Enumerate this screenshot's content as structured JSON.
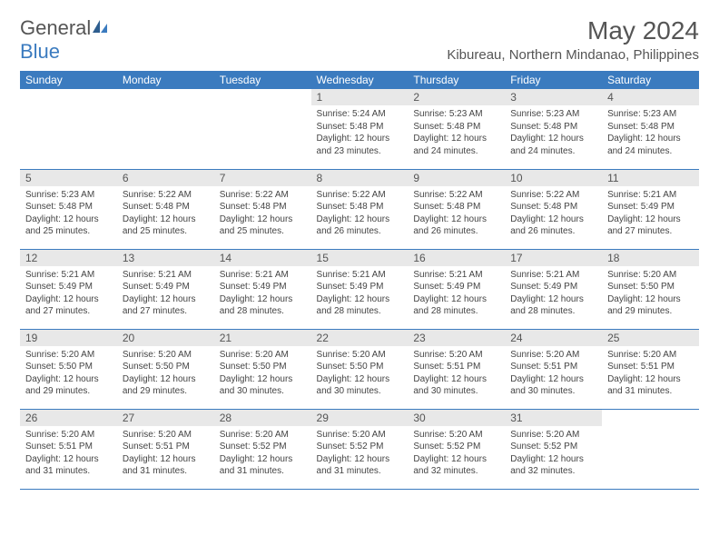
{
  "brand": {
    "part1": "General",
    "part2": "Blue"
  },
  "title": "May 2024",
  "location": "Kibureau, Northern Mindanao, Philippines",
  "weekdays": [
    "Sunday",
    "Monday",
    "Tuesday",
    "Wednesday",
    "Thursday",
    "Friday",
    "Saturday"
  ],
  "colors": {
    "header_bg": "#3b7bbf",
    "header_text": "#ffffff",
    "daynum_bg": "#e8e8e8",
    "border": "#3b7bbf",
    "text": "#444444"
  },
  "fonts": {
    "title_size": 28,
    "location_size": 15,
    "weekday_size": 12,
    "daynum_size": 12,
    "body_size": 10
  },
  "grid": [
    [
      null,
      null,
      null,
      {
        "n": "1",
        "sr": "Sunrise: 5:24 AM",
        "ss": "Sunset: 5:48 PM",
        "dl1": "Daylight: 12 hours",
        "dl2": "and 23 minutes."
      },
      {
        "n": "2",
        "sr": "Sunrise: 5:23 AM",
        "ss": "Sunset: 5:48 PM",
        "dl1": "Daylight: 12 hours",
        "dl2": "and 24 minutes."
      },
      {
        "n": "3",
        "sr": "Sunrise: 5:23 AM",
        "ss": "Sunset: 5:48 PM",
        "dl1": "Daylight: 12 hours",
        "dl2": "and 24 minutes."
      },
      {
        "n": "4",
        "sr": "Sunrise: 5:23 AM",
        "ss": "Sunset: 5:48 PM",
        "dl1": "Daylight: 12 hours",
        "dl2": "and 24 minutes."
      }
    ],
    [
      {
        "n": "5",
        "sr": "Sunrise: 5:23 AM",
        "ss": "Sunset: 5:48 PM",
        "dl1": "Daylight: 12 hours",
        "dl2": "and 25 minutes."
      },
      {
        "n": "6",
        "sr": "Sunrise: 5:22 AM",
        "ss": "Sunset: 5:48 PM",
        "dl1": "Daylight: 12 hours",
        "dl2": "and 25 minutes."
      },
      {
        "n": "7",
        "sr": "Sunrise: 5:22 AM",
        "ss": "Sunset: 5:48 PM",
        "dl1": "Daylight: 12 hours",
        "dl2": "and 25 minutes."
      },
      {
        "n": "8",
        "sr": "Sunrise: 5:22 AM",
        "ss": "Sunset: 5:48 PM",
        "dl1": "Daylight: 12 hours",
        "dl2": "and 26 minutes."
      },
      {
        "n": "9",
        "sr": "Sunrise: 5:22 AM",
        "ss": "Sunset: 5:48 PM",
        "dl1": "Daylight: 12 hours",
        "dl2": "and 26 minutes."
      },
      {
        "n": "10",
        "sr": "Sunrise: 5:22 AM",
        "ss": "Sunset: 5:48 PM",
        "dl1": "Daylight: 12 hours",
        "dl2": "and 26 minutes."
      },
      {
        "n": "11",
        "sr": "Sunrise: 5:21 AM",
        "ss": "Sunset: 5:49 PM",
        "dl1": "Daylight: 12 hours",
        "dl2": "and 27 minutes."
      }
    ],
    [
      {
        "n": "12",
        "sr": "Sunrise: 5:21 AM",
        "ss": "Sunset: 5:49 PM",
        "dl1": "Daylight: 12 hours",
        "dl2": "and 27 minutes."
      },
      {
        "n": "13",
        "sr": "Sunrise: 5:21 AM",
        "ss": "Sunset: 5:49 PM",
        "dl1": "Daylight: 12 hours",
        "dl2": "and 27 minutes."
      },
      {
        "n": "14",
        "sr": "Sunrise: 5:21 AM",
        "ss": "Sunset: 5:49 PM",
        "dl1": "Daylight: 12 hours",
        "dl2": "and 28 minutes."
      },
      {
        "n": "15",
        "sr": "Sunrise: 5:21 AM",
        "ss": "Sunset: 5:49 PM",
        "dl1": "Daylight: 12 hours",
        "dl2": "and 28 minutes."
      },
      {
        "n": "16",
        "sr": "Sunrise: 5:21 AM",
        "ss": "Sunset: 5:49 PM",
        "dl1": "Daylight: 12 hours",
        "dl2": "and 28 minutes."
      },
      {
        "n": "17",
        "sr": "Sunrise: 5:21 AM",
        "ss": "Sunset: 5:49 PM",
        "dl1": "Daylight: 12 hours",
        "dl2": "and 28 minutes."
      },
      {
        "n": "18",
        "sr": "Sunrise: 5:20 AM",
        "ss": "Sunset: 5:50 PM",
        "dl1": "Daylight: 12 hours",
        "dl2": "and 29 minutes."
      }
    ],
    [
      {
        "n": "19",
        "sr": "Sunrise: 5:20 AM",
        "ss": "Sunset: 5:50 PM",
        "dl1": "Daylight: 12 hours",
        "dl2": "and 29 minutes."
      },
      {
        "n": "20",
        "sr": "Sunrise: 5:20 AM",
        "ss": "Sunset: 5:50 PM",
        "dl1": "Daylight: 12 hours",
        "dl2": "and 29 minutes."
      },
      {
        "n": "21",
        "sr": "Sunrise: 5:20 AM",
        "ss": "Sunset: 5:50 PM",
        "dl1": "Daylight: 12 hours",
        "dl2": "and 30 minutes."
      },
      {
        "n": "22",
        "sr": "Sunrise: 5:20 AM",
        "ss": "Sunset: 5:50 PM",
        "dl1": "Daylight: 12 hours",
        "dl2": "and 30 minutes."
      },
      {
        "n": "23",
        "sr": "Sunrise: 5:20 AM",
        "ss": "Sunset: 5:51 PM",
        "dl1": "Daylight: 12 hours",
        "dl2": "and 30 minutes."
      },
      {
        "n": "24",
        "sr": "Sunrise: 5:20 AM",
        "ss": "Sunset: 5:51 PM",
        "dl1": "Daylight: 12 hours",
        "dl2": "and 30 minutes."
      },
      {
        "n": "25",
        "sr": "Sunrise: 5:20 AM",
        "ss": "Sunset: 5:51 PM",
        "dl1": "Daylight: 12 hours",
        "dl2": "and 31 minutes."
      }
    ],
    [
      {
        "n": "26",
        "sr": "Sunrise: 5:20 AM",
        "ss": "Sunset: 5:51 PM",
        "dl1": "Daylight: 12 hours",
        "dl2": "and 31 minutes."
      },
      {
        "n": "27",
        "sr": "Sunrise: 5:20 AM",
        "ss": "Sunset: 5:51 PM",
        "dl1": "Daylight: 12 hours",
        "dl2": "and 31 minutes."
      },
      {
        "n": "28",
        "sr": "Sunrise: 5:20 AM",
        "ss": "Sunset: 5:52 PM",
        "dl1": "Daylight: 12 hours",
        "dl2": "and 31 minutes."
      },
      {
        "n": "29",
        "sr": "Sunrise: 5:20 AM",
        "ss": "Sunset: 5:52 PM",
        "dl1": "Daylight: 12 hours",
        "dl2": "and 31 minutes."
      },
      {
        "n": "30",
        "sr": "Sunrise: 5:20 AM",
        "ss": "Sunset: 5:52 PM",
        "dl1": "Daylight: 12 hours",
        "dl2": "and 32 minutes."
      },
      {
        "n": "31",
        "sr": "Sunrise: 5:20 AM",
        "ss": "Sunset: 5:52 PM",
        "dl1": "Daylight: 12 hours",
        "dl2": "and 32 minutes."
      },
      null
    ]
  ]
}
